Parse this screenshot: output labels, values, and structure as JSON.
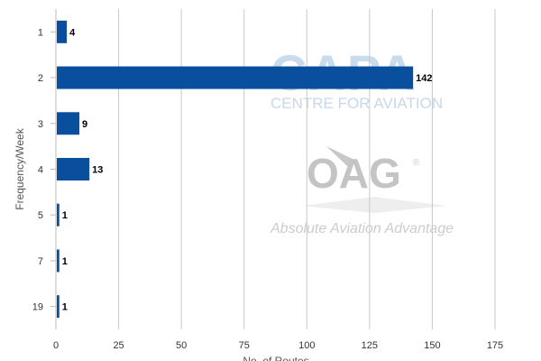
{
  "chart_data": {
    "type": "bar",
    "orientation": "horizontal",
    "categories": [
      "1",
      "2",
      "3",
      "4",
      "5",
      "7",
      "19"
    ],
    "values": [
      4,
      142,
      9,
      13,
      1,
      1,
      1
    ],
    "data_labels": [
      "4",
      "142",
      "9",
      "13",
      "1",
      "1",
      "1"
    ],
    "xlabel": "No. of Routes",
    "ylabel": "Frequency/Week",
    "xlim": [
      0,
      175
    ],
    "xticks": [
      "0",
      "25",
      "50",
      "75",
      "100",
      "125",
      "150",
      "175"
    ],
    "grid": "vertical",
    "bar_color": "#0a4f9e"
  },
  "watermarks": {
    "capa": "CAPA",
    "capa_sub": "CENTRE FOR AVIATION",
    "oag": "OAG",
    "oag_mark": "®",
    "oag_sub": "Absolute Aviation Advantage"
  }
}
